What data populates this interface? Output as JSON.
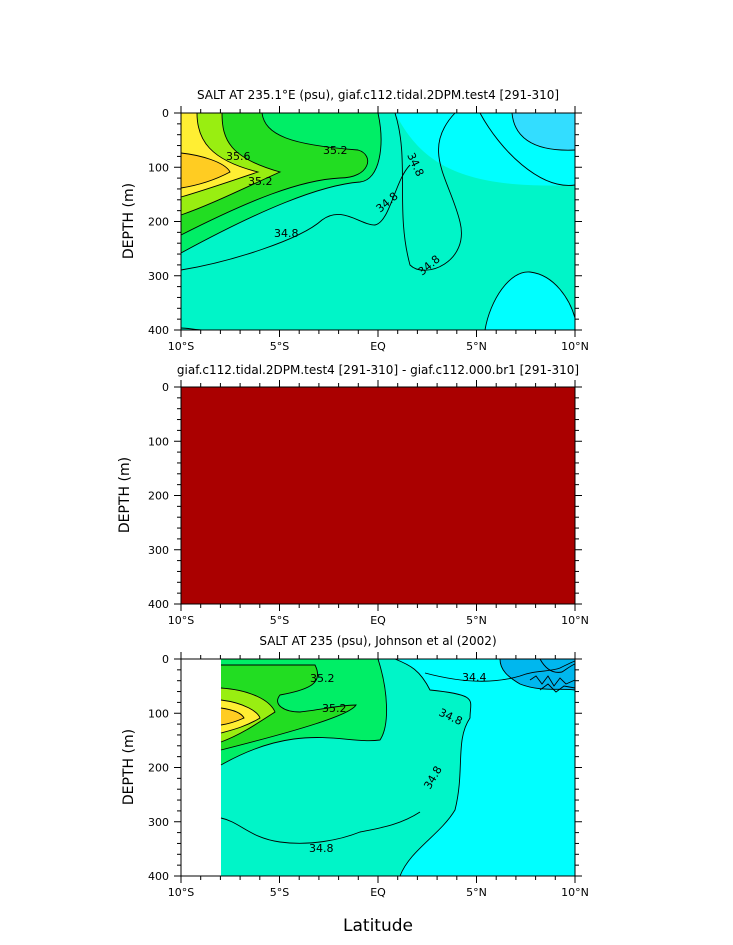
{
  "colors": {
    "s345": "#00ffff",
    "s34_4": "#00b7ee",
    "s34_3": "#33ddff",
    "s348": "#00f5c8",
    "s350": "#00ee66",
    "s352": "#22dd22",
    "s354": "#99ee11",
    "s356": "#ffee33",
    "s358": "#ffcc22",
    "diff": "#aa0000",
    "blank": "#ffffff"
  },
  "chart_data": [
    {
      "type": "heatmap",
      "title": "SALT AT 235.1°E (psu), giaf.c112.tidal.2DPM.test4 [291-310]",
      "xlabel": "",
      "ylabel": "DEPTH (m)",
      "xlim": [
        -10,
        10
      ],
      "ylim": [
        400,
        0
      ],
      "x_ticks": [
        "10°S",
        "5°S",
        "EQ",
        "5°N",
        "10°N"
      ],
      "y_ticks": [
        "0",
        "100",
        "200",
        "300",
        "400"
      ],
      "contour_labels": [
        {
          "text": "35.6",
          "lat": -8.0,
          "depth": 82
        },
        {
          "text": "35.2",
          "lat": -2.2,
          "depth": 68
        },
        {
          "text": "35.2",
          "lat": -5.4,
          "depth": 132
        },
        {
          "text": "34.8",
          "lat": 1.9,
          "depth": 80
        },
        {
          "text": "34.8",
          "lat": 0.7,
          "depth": 170
        },
        {
          "text": "34.8",
          "lat": -4.8,
          "depth": 220
        },
        {
          "text": "34.8",
          "lat": 2.9,
          "depth": 283
        }
      ]
    },
    {
      "type": "heatmap",
      "title": "giaf.c112.tidal.2DPM.test4 [291-310] - giaf.c112.000.br1 [291-310]",
      "xlabel": "",
      "ylabel": "DEPTH (m)",
      "xlim": [
        -10,
        10
      ],
      "ylim": [
        400,
        0
      ],
      "x_ticks": [
        "10°S",
        "5°S",
        "EQ",
        "5°N",
        "10°N"
      ],
      "y_ticks": [
        "0",
        "100",
        "200",
        "300",
        "400"
      ],
      "contour_labels": []
    },
    {
      "type": "heatmap",
      "title": "SALT AT 235 (psu), Johnson et al (2002)",
      "xlabel": "Latitude",
      "ylabel": "DEPTH (m)",
      "xlim": [
        -10,
        10
      ],
      "ylim": [
        400,
        0
      ],
      "data_lat_range": [
        -8,
        10
      ],
      "x_ticks": [
        "10°S",
        "5°S",
        "EQ",
        "5°N",
        "10°N"
      ],
      "y_ticks": [
        "0",
        "100",
        "200",
        "300",
        "400"
      ],
      "contour_labels": [
        {
          "text": "35.2",
          "lat": -4.8,
          "depth": 35
        },
        {
          "text": "35.2",
          "lat": -2.7,
          "depth": 88
        },
        {
          "text": "34.4",
          "lat": 4.9,
          "depth": 35
        },
        {
          "text": "34.8",
          "lat": 3.8,
          "depth": 100
        },
        {
          "text": "34.8",
          "lat": 3.2,
          "depth": 222
        },
        {
          "text": "34.8",
          "lat": -2.9,
          "depth": 353
        }
      ]
    }
  ]
}
